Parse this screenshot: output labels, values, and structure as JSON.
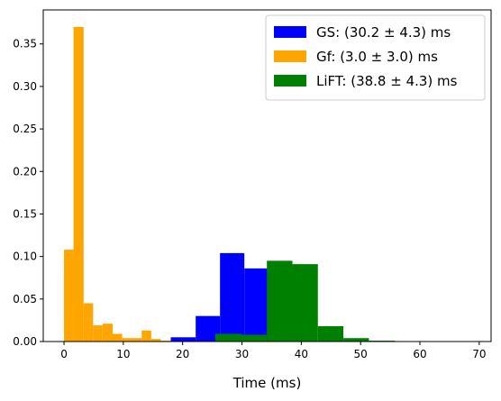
{
  "chart_data": {
    "type": "bar",
    "xlabel": "Time (ms)",
    "ylabel": "",
    "title": "",
    "xlim": [
      -3.5,
      72
    ],
    "ylim": [
      0,
      0.39
    ],
    "xticks": [
      0,
      10,
      20,
      30,
      40,
      50,
      60,
      70
    ],
    "yticks": [
      0.0,
      0.05,
      0.1,
      0.15,
      0.2,
      0.25,
      0.3,
      0.35
    ],
    "legend_position": "top-right",
    "grid": false,
    "series": [
      {
        "name": "GS:  (30.2 ± 4.3) ms",
        "color": "#0000ff",
        "bins": [
          {
            "x0": 18.0,
            "x1": 22.2,
            "y": 0.005
          },
          {
            "x0": 22.2,
            "x1": 26.3,
            "y": 0.03
          },
          {
            "x0": 26.3,
            "x1": 30.4,
            "y": 0.104
          },
          {
            "x0": 30.4,
            "x1": 34.5,
            "y": 0.086
          },
          {
            "x0": 34.5,
            "x1": 38.6,
            "y": 0.078
          },
          {
            "x0": 38.6,
            "x1": 42.7,
            "y": 0.017
          }
        ]
      },
      {
        "name": "Gf:  (3.0 ± 3.0) ms",
        "color": "#ffa500",
        "bins": [
          {
            "x0": 0.0,
            "x1": 1.6,
            "y": 0.108
          },
          {
            "x0": 1.6,
            "x1": 3.3,
            "y": 0.37
          },
          {
            "x0": 3.3,
            "x1": 4.9,
            "y": 0.045
          },
          {
            "x0": 4.9,
            "x1": 6.5,
            "y": 0.019
          },
          {
            "x0": 6.5,
            "x1": 8.2,
            "y": 0.021
          },
          {
            "x0": 8.2,
            "x1": 9.8,
            "y": 0.009
          },
          {
            "x0": 9.8,
            "x1": 11.4,
            "y": 0.004
          },
          {
            "x0": 11.4,
            "x1": 13.1,
            "y": 0.004
          },
          {
            "x0": 13.1,
            "x1": 14.7,
            "y": 0.013
          },
          {
            "x0": 14.7,
            "x1": 16.3,
            "y": 0.003
          },
          {
            "x0": 16.3,
            "x1": 18.0,
            "y": 0.001
          }
        ]
      },
      {
        "name": "LiFT:  (38.8 ± 4.3) ms",
        "color": "#008000",
        "bins": [
          {
            "x0": 25.5,
            "x1": 29.9,
            "y": 0.009
          },
          {
            "x0": 29.9,
            "x1": 34.2,
            "y": 0.008
          },
          {
            "x0": 34.2,
            "x1": 38.5,
            "y": 0.095
          },
          {
            "x0": 38.5,
            "x1": 42.8,
            "y": 0.091
          },
          {
            "x0": 42.8,
            "x1": 47.1,
            "y": 0.018
          },
          {
            "x0": 47.1,
            "x1": 51.4,
            "y": 0.004
          },
          {
            "x0": 51.4,
            "x1": 55.8,
            "y": 0.001
          },
          {
            "x0": 55.8,
            "x1": 60.1,
            "y": 0.0005
          },
          {
            "x0": 60.1,
            "x1": 64.4,
            "y": 0.0004
          },
          {
            "x0": 64.4,
            "x1": 68.7,
            "y": 0.0003
          }
        ]
      }
    ]
  }
}
